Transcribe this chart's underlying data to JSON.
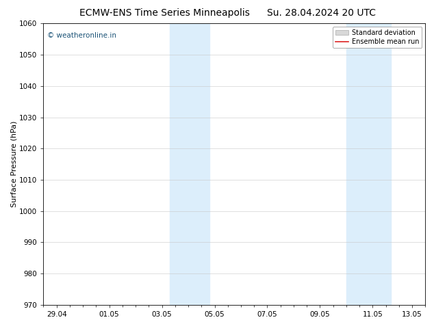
{
  "title_left": "ECMW-ENS Time Series Minneapolis",
  "title_right": "Su. 28.04.2024 20 UTC",
  "ylabel": "Surface Pressure (hPa)",
  "ylim": [
    970,
    1060
  ],
  "yticks": [
    970,
    980,
    990,
    1000,
    1010,
    1020,
    1030,
    1040,
    1050,
    1060
  ],
  "xlim": [
    0,
    14.5
  ],
  "xtick_labels": [
    "29.04",
    "01.05",
    "03.05",
    "05.05",
    "07.05",
    "09.05",
    "11.05",
    "13.05"
  ],
  "xtick_positions": [
    0.5,
    2.5,
    4.5,
    6.5,
    8.5,
    10.5,
    12.5,
    14.0
  ],
  "shaded_bands": [
    {
      "x_start": 4.8,
      "x_end": 6.3
    },
    {
      "x_start": 11.5,
      "x_end": 13.2
    }
  ],
  "band_color": "#dceefb",
  "watermark_text": "© weatheronline.in",
  "watermark_color": "#1a5276",
  "legend_std_label": "Standard deviation",
  "legend_mean_label": "Ensemble mean run",
  "std_patch_facecolor": "#d8d8d8",
  "std_patch_edgecolor": "#aaaaaa",
  "mean_line_color": "#dd2222",
  "background_color": "#ffffff",
  "grid_color": "#c8c8c8",
  "title_fontsize": 10,
  "ylabel_fontsize": 8,
  "tick_fontsize": 7.5,
  "legend_fontsize": 7,
  "watermark_fontsize": 7.5
}
